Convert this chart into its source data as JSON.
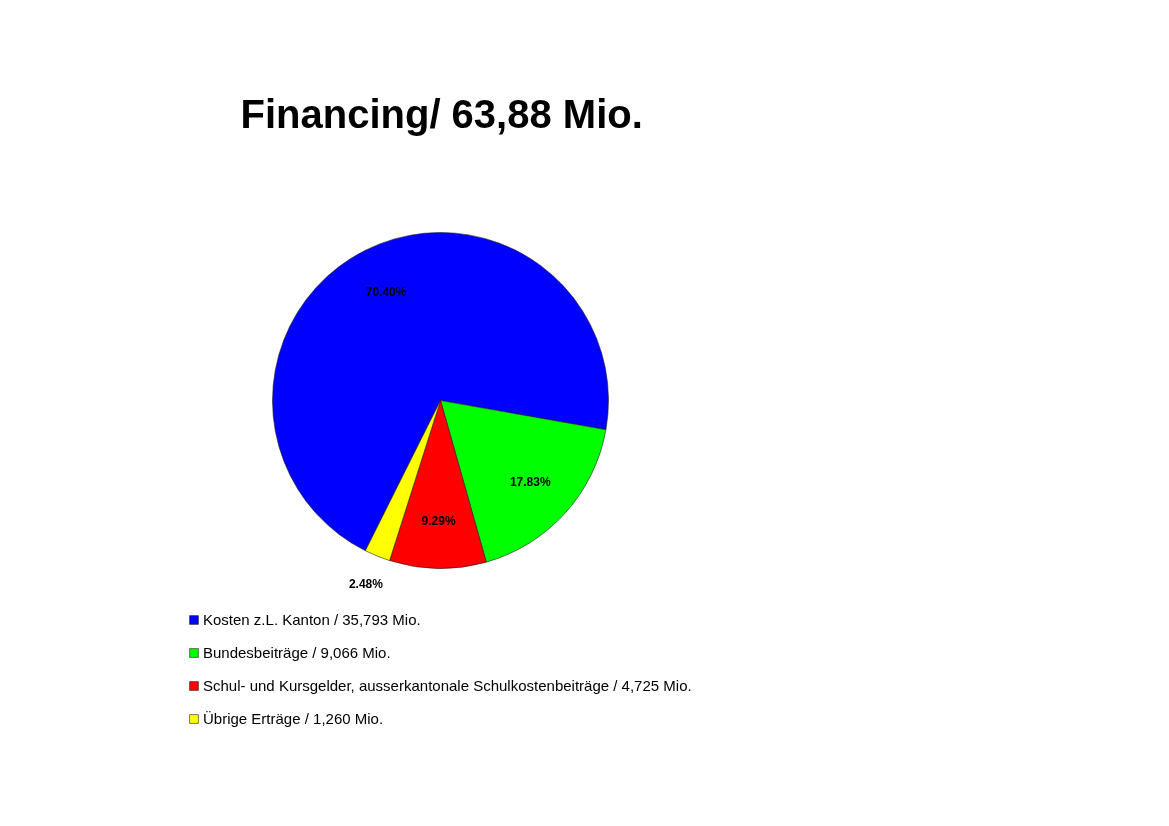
{
  "chart_data": {
    "type": "pie",
    "title": "Financing/ 63,88 Mio.",
    "categories": [
      "Kosten z.L. Kanton / 35,793 Mio.",
      "Bundesbeiträge / 9,066 Mio.",
      "Schul- und Kursgelder, ausserkantonale Schulkostenbeiträge / 4,725 Mio.",
      "Übrige Erträge / 1,260 Mio."
    ],
    "values": [
      70.4,
      17.83,
      9.29,
      2.48
    ],
    "colors": [
      "#0000ff",
      "#00ff00",
      "#ff0000",
      "#ffff00"
    ],
    "value_labels": [
      "70.40%",
      "17.83%",
      "9.29%",
      "2.48%"
    ],
    "legend": "bottom"
  }
}
